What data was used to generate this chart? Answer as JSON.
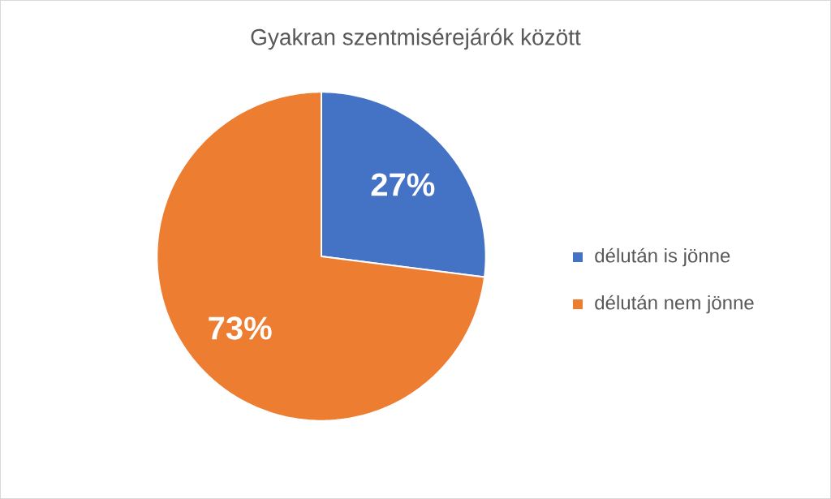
{
  "chart_data": {
    "type": "pie",
    "title": "Gyakran szentmisérejárók között",
    "categories": [
      "délután is jönne",
      "délután nem jönne"
    ],
    "values": [
      27,
      73
    ],
    "colors": [
      "#4472c4",
      "#ed7d31"
    ],
    "value_labels": [
      "27%",
      "73%"
    ],
    "legend": "right"
  }
}
